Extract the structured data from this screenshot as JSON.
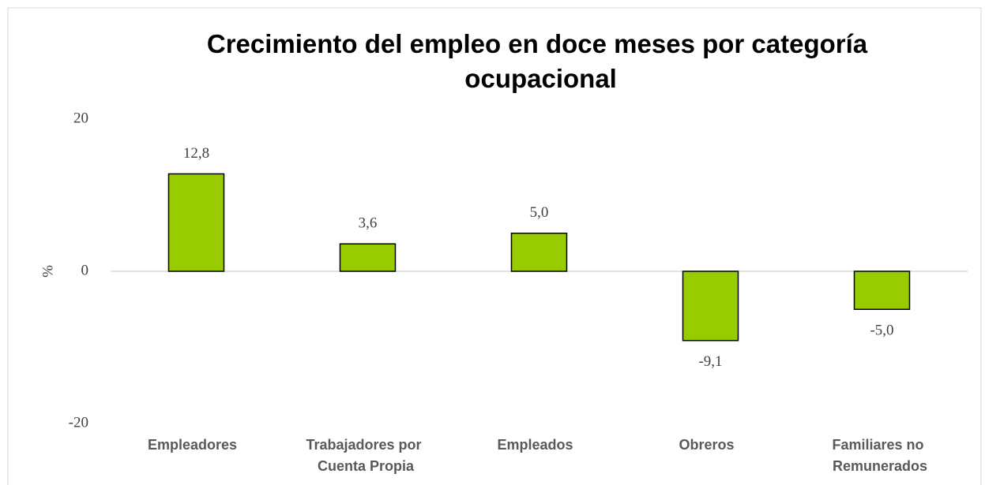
{
  "chart_data": {
    "type": "bar",
    "title": "Crecimiento del empleo en doce meses por categoría ocupacional",
    "y_label": "%",
    "categories": [
      "Empleadores",
      "Trabajadores por Cuenta Propia",
      "Empleados",
      "Obreros",
      "Familiares no Remunerados"
    ],
    "values": [
      12.8,
      3.6,
      5.0,
      -9.1,
      -5.0
    ],
    "value_labels": [
      "12,8",
      "3,6",
      "5,0",
      "-9,1",
      "-5,0"
    ],
    "color": "#99cc00",
    "ylim": [
      -20,
      20
    ],
    "yticks": [
      -20,
      0,
      20
    ]
  }
}
